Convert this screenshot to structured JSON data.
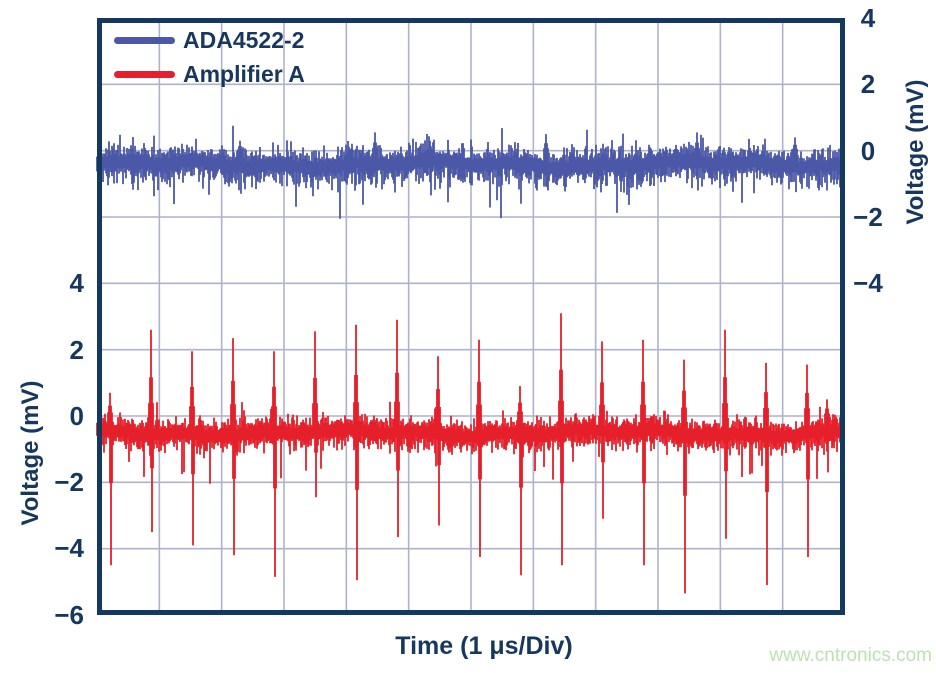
{
  "colors": {
    "navy_text": "#17375e",
    "plot_border": "#14395f",
    "grid": "#aeb2cd",
    "trace_blue": "#4a58a7",
    "trace_red": "#e6202a",
    "watermark_green": "#bae3b1",
    "background": "#ffffff"
  },
  "axes": {
    "left": {
      "title": "Voltage (mV)",
      "ticks": [
        "4",
        "2",
        "0",
        "−2",
        "−4",
        "−6"
      ]
    },
    "right": {
      "title": "Voltage (mV)",
      "ticks": [
        "4",
        "2",
        "0",
        "−2",
        "−4"
      ]
    },
    "x": {
      "title": "Time (1 μs/Div)"
    }
  },
  "watermark": "www.cntronics.com",
  "chart_data": {
    "type": "line",
    "title": "",
    "style": "oscilloscope-noise-traces",
    "x_axis": {
      "label": "Time (1 μs/Div)",
      "divisions": 12,
      "time_per_div": "1 μs"
    },
    "y_axis": {
      "label": "Voltage (mV)",
      "mv_per_div": 2,
      "divisions": 9,
      "right_tick_values": [
        4,
        2,
        0,
        -2,
        -4
      ],
      "left_tick_values": [
        4,
        2,
        0,
        -2,
        -4,
        -6
      ]
    },
    "grid": true,
    "legend_position": "top-left",
    "series": [
      {
        "name": "ADA4522-2",
        "color": "#4a58a7",
        "axis": "right",
        "zero_div": 2,
        "baseline_mV": -0.38,
        "noise_pp_mV": 1.0,
        "seed": 1077,
        "spikes": [
          {
            "x_div": 2.3,
            "up_mV": 0.3,
            "down_mV": -1.3
          },
          {
            "x_div": 4.46,
            "up_mV": 0.55,
            "down_mV": -0.9
          },
          {
            "x_div": 5.34,
            "up_mV": 0.3,
            "down_mV": -1.35
          },
          {
            "x_div": 7.2,
            "up_mV": 0.5,
            "down_mV": -1.1
          },
          {
            "x_div": 9.63,
            "up_mV": 0.55,
            "down_mV": -1.2
          },
          {
            "x_div": 11.2,
            "up_mV": 0.4,
            "down_mV": -1.25
          }
        ]
      },
      {
        "name": "Amplifier A",
        "color": "#e6202a",
        "axis": "left",
        "zero_div": 6,
        "baseline_mV": -0.48,
        "noise_pp_mV": 0.8,
        "seed": 2154,
        "spikes": [
          {
            "x_div": 0.21,
            "up_mV": 0.7,
            "down_mV": -4.5
          },
          {
            "x_div": 0.87,
            "up_mV": 2.6,
            "down_mV": -3.5
          },
          {
            "x_div": 1.52,
            "up_mV": 1.95,
            "down_mV": -3.9
          },
          {
            "x_div": 2.18,
            "up_mV": 2.35,
            "down_mV": -4.2
          },
          {
            "x_div": 2.84,
            "up_mV": 1.95,
            "down_mV": -4.85
          },
          {
            "x_div": 3.5,
            "up_mV": 2.55,
            "down_mV": -2.45
          },
          {
            "x_div": 4.15,
            "up_mV": 2.75,
            "down_mV": -4.95
          },
          {
            "x_div": 4.81,
            "up_mV": 2.9,
            "down_mV": -3.65
          },
          {
            "x_div": 5.47,
            "up_mV": 1.8,
            "down_mV": -3.3
          },
          {
            "x_div": 6.13,
            "up_mV": 2.3,
            "down_mV": -4.25
          },
          {
            "x_div": 6.79,
            "up_mV": 0.9,
            "down_mV": -4.8
          },
          {
            "x_div": 7.44,
            "up_mV": 3.1,
            "down_mV": -4.5
          },
          {
            "x_div": 8.1,
            "up_mV": 2.25,
            "down_mV": -3.1
          },
          {
            "x_div": 8.76,
            "up_mV": 2.3,
            "down_mV": -4.5
          },
          {
            "x_div": 9.42,
            "up_mV": 1.7,
            "down_mV": -5.35
          },
          {
            "x_div": 10.07,
            "up_mV": 2.6,
            "down_mV": -3.7
          },
          {
            "x_div": 10.73,
            "up_mV": 1.6,
            "down_mV": -5.1
          },
          {
            "x_div": 11.39,
            "up_mV": 1.55,
            "down_mV": -4.25
          },
          {
            "x_div": 11.71,
            "up_mV": 0.5,
            "down_mV": -1.7
          }
        ]
      }
    ]
  }
}
